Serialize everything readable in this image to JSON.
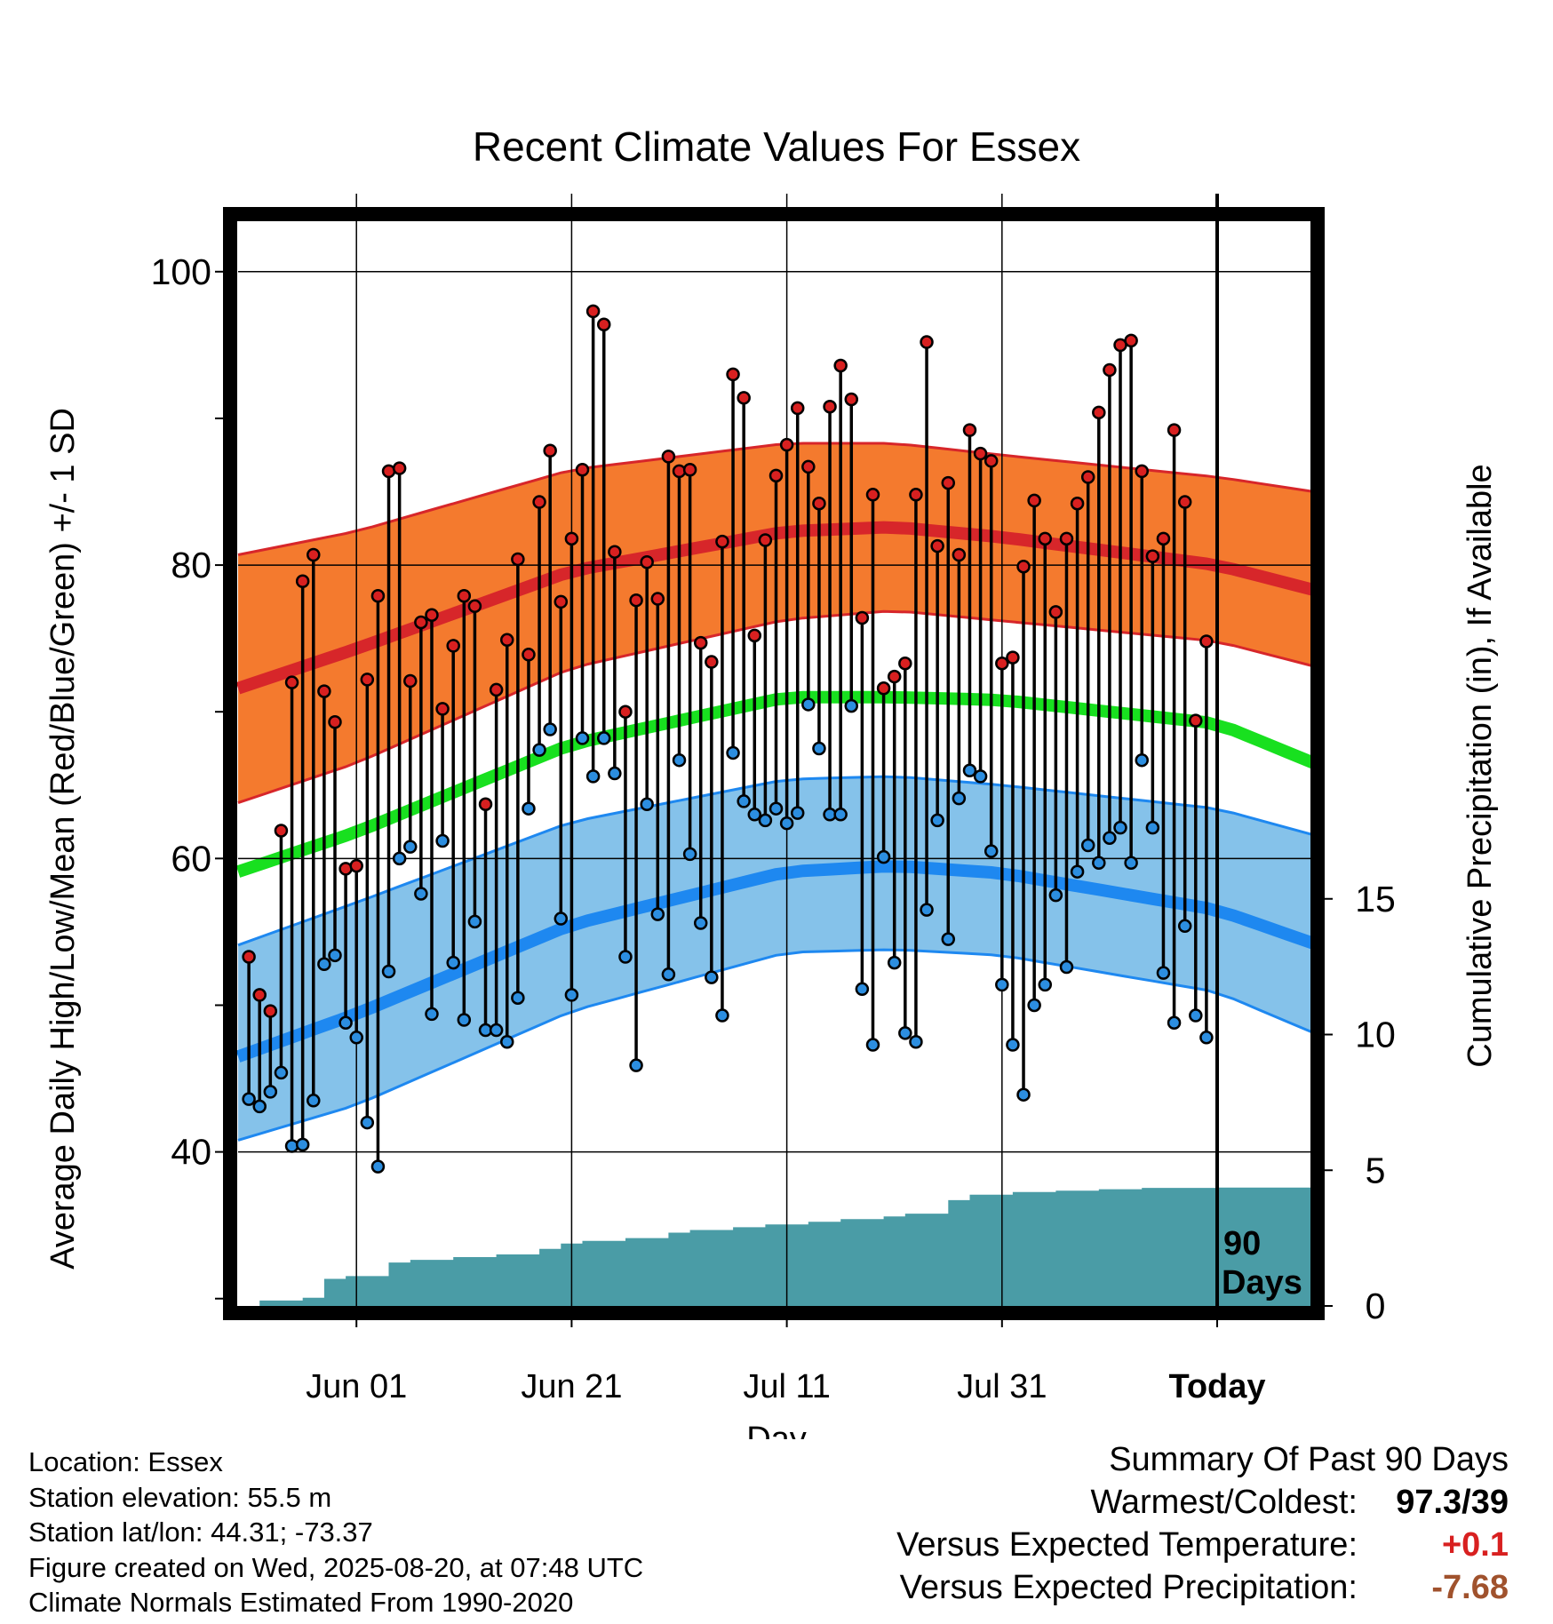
{
  "chart_data": {
    "type": "line",
    "title": "Recent Climate Values For Essex",
    "xlabel": "Day",
    "ylabel": "Average Daily High/Low/Mean (Red/Blue/Green) +/- 1 SD",
    "ylabel_right": "Cumulative Precipitation (in), If Available",
    "ylim": [
      29.5,
      103.5
    ],
    "y_ticks": [
      "40",
      "60",
      "80",
      "100"
    ],
    "y2lim": [
      0,
      40
    ],
    "y2_ticks": [
      "0",
      "5",
      "10",
      "15"
    ],
    "x_range_days": [
      -91,
      9
    ],
    "x_ticks": [
      {
        "label": "Jun 01",
        "day": -80
      },
      {
        "label": "Jun 21",
        "day": -60
      },
      {
        "label": "Jul 11",
        "day": -40
      },
      {
        "label": "Jul 31",
        "day": -20
      },
      {
        "label": "Today",
        "day": 0
      }
    ],
    "period_label": "90 Days",
    "normals": {
      "day": [
        -91,
        -80,
        -60,
        -40,
        -30,
        -20,
        0,
        9
      ],
      "high_mean": [
        71.6,
        74.3,
        79.6,
        82.3,
        82.6,
        81.9,
        80.0,
        78.3
      ],
      "high_upper": [
        80.7,
        82.3,
        86.5,
        88.3,
        88.3,
        87.5,
        86.0,
        85.0
      ],
      "high_lower": [
        63.8,
        66.5,
        73.0,
        76.3,
        76.9,
        76.2,
        74.8,
        73.1
      ],
      "mean": [
        59.1,
        61.8,
        67.8,
        71.0,
        71.0,
        70.8,
        69.2,
        66.5
      ],
      "low_mean": [
        46.5,
        49.4,
        55.5,
        59.1,
        59.5,
        59.0,
        56.5,
        54.2
      ],
      "low_upper": [
        54.1,
        57.0,
        62.5,
        65.4,
        65.6,
        65.0,
        63.4,
        61.6
      ],
      "low_lower": [
        40.8,
        43.2,
        49.6,
        53.6,
        53.8,
        53.4,
        50.9,
        48.1
      ]
    },
    "series": [
      {
        "name": "High",
        "x": [
          -90,
          -89,
          -88,
          -87,
          -86,
          -85,
          -84,
          -83,
          -82,
          -81,
          -80,
          -79,
          -78,
          -77,
          -76,
          -75,
          -74,
          -73,
          -72,
          -71,
          -70,
          -69,
          -68,
          -67,
          -66,
          -65,
          -64,
          -63,
          -62,
          -61,
          -60,
          -59,
          -58,
          -57,
          -56,
          -55,
          -54,
          -53,
          -52,
          -51,
          -50,
          -49,
          -48,
          -47,
          -46,
          -45,
          -44,
          -43,
          -42,
          -41,
          -40,
          -39,
          -38,
          -37,
          -36,
          -35,
          -34,
          -33,
          -32,
          -31,
          -30,
          -29,
          -28,
          -27,
          -26,
          -25,
          -24,
          -23,
          -22,
          -21,
          -20,
          -19,
          -18,
          -17,
          -16,
          -15,
          -14,
          -13,
          -12,
          -11,
          -10,
          -9,
          -8,
          -7,
          -6,
          -5,
          -4,
          -3,
          -2,
          -1
        ],
        "values": [
          53.3,
          50.7,
          49.6,
          61.9,
          72.0,
          78.9,
          80.7,
          71.4,
          69.3,
          59.3,
          59.5,
          72.2,
          77.9,
          86.4,
          86.6,
          72.1,
          76.1,
          76.6,
          70.2,
          74.5,
          77.9,
          77.2,
          63.7,
          71.5,
          74.9,
          80.4,
          73.9,
          84.3,
          87.8,
          77.5,
          81.8,
          86.5,
          97.3,
          96.4,
          80.9,
          70.0,
          77.6,
          80.2,
          77.7,
          87.4,
          86.4,
          86.5,
          74.7,
          73.4,
          81.6,
          93.0,
          91.4,
          75.2,
          81.7,
          86.1,
          88.2,
          90.7,
          86.7,
          84.2,
          90.8,
          93.6,
          91.3,
          76.4,
          84.8,
          71.6,
          72.4,
          73.3,
          84.8,
          95.2,
          81.3,
          85.6,
          80.7,
          89.2,
          87.6,
          87.1,
          73.3,
          73.7,
          79.9,
          84.4,
          81.8,
          76.8,
          81.8,
          84.2,
          86.0,
          90.4,
          93.3,
          95.0,
          95.3,
          86.4,
          80.6,
          81.8,
          89.2,
          84.3,
          69.4,
          74.8
        ]
      },
      {
        "name": "Low",
        "x": [
          -90,
          -89,
          -88,
          -87,
          -86,
          -85,
          -84,
          -83,
          -82,
          -81,
          -80,
          -79,
          -78,
          -77,
          -76,
          -75,
          -74,
          -73,
          -72,
          -71,
          -70,
          -69,
          -68,
          -67,
          -66,
          -65,
          -64,
          -63,
          -62,
          -61,
          -60,
          -59,
          -58,
          -57,
          -56,
          -55,
          -54,
          -53,
          -52,
          -51,
          -50,
          -49,
          -48,
          -47,
          -46,
          -45,
          -44,
          -43,
          -42,
          -41,
          -40,
          -39,
          -38,
          -37,
          -36,
          -35,
          -34,
          -33,
          -32,
          -31,
          -30,
          -29,
          -28,
          -27,
          -26,
          -25,
          -24,
          -23,
          -22,
          -21,
          -20,
          -19,
          -18,
          -17,
          -16,
          -15,
          -14,
          -13,
          -12,
          -11,
          -10,
          -9,
          -8,
          -7,
          -6,
          -5,
          -4,
          -3,
          -2,
          -1
        ],
        "values": [
          43.6,
          43.1,
          44.1,
          45.4,
          40.4,
          40.5,
          43.5,
          52.8,
          53.4,
          48.8,
          47.8,
          42.0,
          39.0,
          52.3,
          60.0,
          60.8,
          57.6,
          49.4,
          61.2,
          52.9,
          49.0,
          55.7,
          48.3,
          48.3,
          47.5,
          50.5,
          63.4,
          67.4,
          68.8,
          55.9,
          50.7,
          68.2,
          65.6,
          68.2,
          65.8,
          53.3,
          45.9,
          63.7,
          56.2,
          52.1,
          66.7,
          60.3,
          55.6,
          51.9,
          49.3,
          67.2,
          63.9,
          63.0,
          62.6,
          63.4,
          62.4,
          63.1,
          70.5,
          67.5,
          63.0,
          63.0,
          70.4,
          51.1,
          47.3,
          60.1,
          52.9,
          48.1,
          47.5,
          56.5,
          62.6,
          54.5,
          64.1,
          66.0,
          65.6,
          60.5,
          51.4,
          47.3,
          43.9,
          50.0,
          51.4,
          57.5,
          52.6,
          59.1,
          60.9,
          59.7,
          61.4,
          62.1,
          59.7,
          66.7,
          62.1,
          52.2,
          48.8,
          55.4,
          49.3,
          47.8
        ]
      }
    ],
    "precipitation": {
      "name": "Cumulative Precipitation",
      "day": [
        -91,
        -89,
        -85,
        -83,
        -81,
        -77,
        -75,
        -71,
        -67,
        -63,
        -61,
        -59,
        -55,
        -51,
        -49,
        -45,
        -42,
        -38,
        -35,
        -31,
        -29,
        -25,
        -23,
        -19,
        -15,
        -11,
        -7,
        0,
        9
      ],
      "values": [
        0.0,
        0.2,
        0.3,
        1.0,
        1.1,
        1.6,
        1.7,
        1.8,
        1.9,
        2.1,
        2.3,
        2.4,
        2.5,
        2.7,
        2.8,
        2.9,
        3.0,
        3.1,
        3.2,
        3.3,
        3.4,
        3.9,
        4.1,
        4.2,
        4.25,
        4.3,
        4.35,
        4.36,
        4.36
      ]
    },
    "colors": {
      "high_band": "#f47a2e",
      "high_line": "#d7262a",
      "mean_line": "#18e01f",
      "low_band": "#85c2ea",
      "low_line": "#1e88f0",
      "precip": "#4a9ca6",
      "high_dot": "#d82020",
      "low_dot": "#2c8ee0"
    }
  },
  "footer": {
    "location": "Location: Essex",
    "elevation": "Station elevation: 55.5 m",
    "latlon": "Station lat/lon: 44.31; -73.37",
    "created": "Figure created on Wed, 2025-08-20, at 07:48 UTC",
    "normals": "Climate Normals Estimated From 1990-2020"
  },
  "summary": {
    "title": "Summary Of Past 90 Days",
    "warmest_label": "Warmest/Coldest:",
    "warmest_value": "97.3",
    "separator": "/",
    "coldest_value": "39",
    "temp_label": "Versus Expected Temperature:",
    "temp_value": "+0.1",
    "temp_color": "#d82020",
    "precip_label": "Versus Expected Precipitation:",
    "precip_value": "-7.68",
    "precip_color": "#a0522d"
  }
}
